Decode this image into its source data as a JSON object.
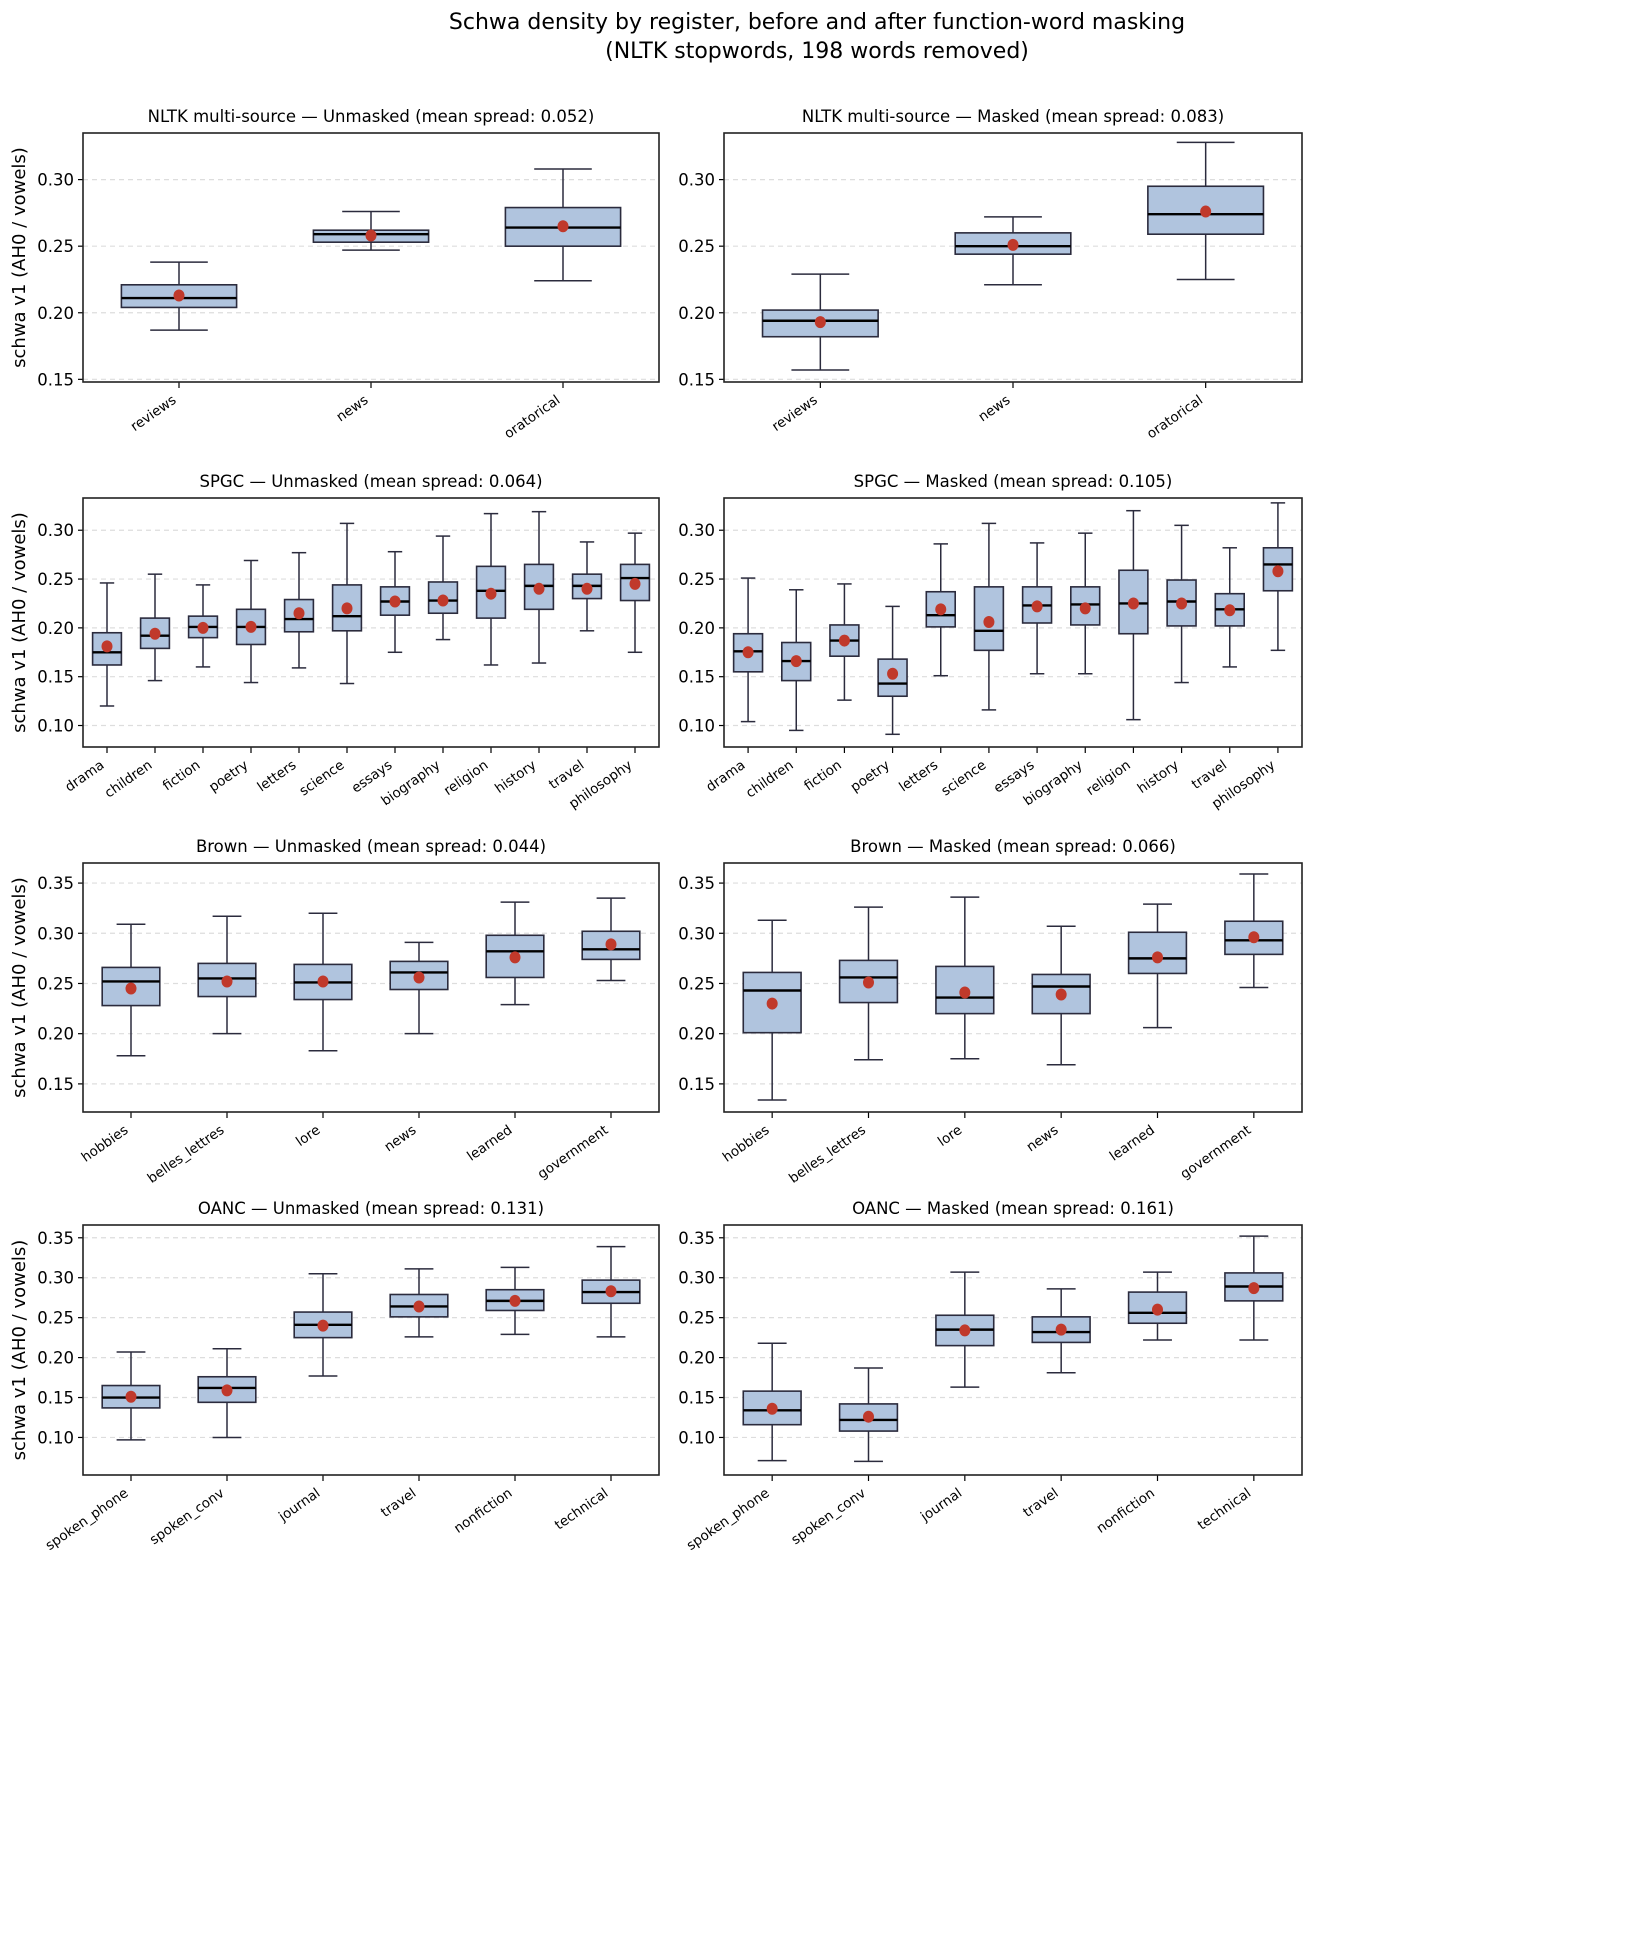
{
  "figure": {
    "title_line1": "Schwa density by register, before and after function-word masking",
    "title_line2": "(NLTK stopwords, 198 words removed)",
    "colors": {
      "box_fill": "#b0c4de",
      "box_edge": "#2b2b3d",
      "median": "#000000",
      "mean_marker": "#c0392b",
      "grid": "#dddddd"
    }
  },
  "chart_data": [
    {
      "type": "box",
      "title": "NLTK multi-source — Unmasked  (mean spread: 0.052)",
      "ylabel": "schwa v1 (AH0 / vowels)",
      "xlabel": "",
      "ylim": [
        0.148,
        0.335
      ],
      "yticks": [
        "0.15",
        "0.20",
        "0.25",
        "0.30"
      ],
      "grid": "y-dashed",
      "categories": [
        "reviews",
        "news",
        "oratorical"
      ],
      "boxes": [
        {
          "whislo": 0.187,
          "q1": 0.204,
          "median": 0.211,
          "q3": 0.221,
          "whishi": 0.238,
          "mean": 0.213
        },
        {
          "whislo": 0.247,
          "q1": 0.253,
          "median": 0.259,
          "q3": 0.262,
          "whishi": 0.276,
          "mean": 0.258
        },
        {
          "whislo": 0.224,
          "q1": 0.25,
          "median": 0.264,
          "q3": 0.279,
          "whishi": 0.308,
          "mean": 0.265
        }
      ]
    },
    {
      "type": "box",
      "title": "NLTK multi-source — Masked  (mean spread: 0.083)",
      "ylabel": "",
      "xlabel": "",
      "ylim": [
        0.148,
        0.335
      ],
      "yticks": [
        "0.15",
        "0.20",
        "0.25",
        "0.30"
      ],
      "grid": "y-dashed",
      "categories": [
        "reviews",
        "news",
        "oratorical"
      ],
      "boxes": [
        {
          "whislo": 0.157,
          "q1": 0.182,
          "median": 0.194,
          "q3": 0.202,
          "whishi": 0.229,
          "mean": 0.193
        },
        {
          "whislo": 0.221,
          "q1": 0.244,
          "median": 0.25,
          "q3": 0.26,
          "whishi": 0.272,
          "mean": 0.251
        },
        {
          "whislo": 0.225,
          "q1": 0.259,
          "median": 0.274,
          "q3": 0.295,
          "whishi": 0.328,
          "mean": 0.276
        }
      ]
    },
    {
      "type": "box",
      "title": "SPGC — Unmasked  (mean spread: 0.064)",
      "ylabel": "schwa v1 (AH0 / vowels)",
      "xlabel": "",
      "ylim": [
        0.078,
        0.333
      ],
      "yticks": [
        "0.10",
        "0.15",
        "0.20",
        "0.25",
        "0.30"
      ],
      "grid": "y-dashed",
      "categories": [
        "drama",
        "children",
        "fiction",
        "poetry",
        "letters",
        "science",
        "essays",
        "biography",
        "religion",
        "history",
        "travel",
        "philosophy"
      ],
      "boxes": [
        {
          "whislo": 0.12,
          "q1": 0.162,
          "median": 0.175,
          "q3": 0.195,
          "whishi": 0.246,
          "mean": 0.181
        },
        {
          "whislo": 0.146,
          "q1": 0.179,
          "median": 0.192,
          "q3": 0.21,
          "whishi": 0.255,
          "mean": 0.194
        },
        {
          "whislo": 0.16,
          "q1": 0.19,
          "median": 0.201,
          "q3": 0.212,
          "whishi": 0.244,
          "mean": 0.2
        },
        {
          "whislo": 0.144,
          "q1": 0.183,
          "median": 0.201,
          "q3": 0.219,
          "whishi": 0.269,
          "mean": 0.201
        },
        {
          "whislo": 0.159,
          "q1": 0.196,
          "median": 0.209,
          "q3": 0.229,
          "whishi": 0.277,
          "mean": 0.215
        },
        {
          "whislo": 0.143,
          "q1": 0.197,
          "median": 0.212,
          "q3": 0.244,
          "whishi": 0.307,
          "mean": 0.22
        },
        {
          "whislo": 0.175,
          "q1": 0.213,
          "median": 0.227,
          "q3": 0.242,
          "whishi": 0.278,
          "mean": 0.227
        },
        {
          "whislo": 0.188,
          "q1": 0.215,
          "median": 0.228,
          "q3": 0.247,
          "whishi": 0.294,
          "mean": 0.228
        },
        {
          "whislo": 0.162,
          "q1": 0.21,
          "median": 0.238,
          "q3": 0.263,
          "whishi": 0.317,
          "mean": 0.235
        },
        {
          "whislo": 0.164,
          "q1": 0.219,
          "median": 0.243,
          "q3": 0.265,
          "whishi": 0.319,
          "mean": 0.24
        },
        {
          "whislo": 0.197,
          "q1": 0.23,
          "median": 0.243,
          "q3": 0.255,
          "whishi": 0.288,
          "mean": 0.24
        },
        {
          "whislo": 0.175,
          "q1": 0.228,
          "median": 0.251,
          "q3": 0.265,
          "whishi": 0.297,
          "mean": 0.245
        }
      ]
    },
    {
      "type": "box",
      "title": "SPGC — Masked  (mean spread: 0.105)",
      "ylabel": "",
      "xlabel": "",
      "ylim": [
        0.078,
        0.333
      ],
      "yticks": [
        "0.10",
        "0.15",
        "0.20",
        "0.25",
        "0.30"
      ],
      "grid": "y-dashed",
      "categories": [
        "drama",
        "children",
        "fiction",
        "poetry",
        "letters",
        "science",
        "essays",
        "biography",
        "religion",
        "history",
        "travel",
        "philosophy"
      ],
      "boxes": [
        {
          "whislo": 0.104,
          "q1": 0.155,
          "median": 0.176,
          "q3": 0.194,
          "whishi": 0.251,
          "mean": 0.175
        },
        {
          "whislo": 0.095,
          "q1": 0.146,
          "median": 0.166,
          "q3": 0.185,
          "whishi": 0.239,
          "mean": 0.166
        },
        {
          "whislo": 0.126,
          "q1": 0.171,
          "median": 0.187,
          "q3": 0.203,
          "whishi": 0.245,
          "mean": 0.187
        },
        {
          "whislo": 0.091,
          "q1": 0.13,
          "median": 0.143,
          "q3": 0.168,
          "whishi": 0.222,
          "mean": 0.153
        },
        {
          "whislo": 0.151,
          "q1": 0.201,
          "median": 0.213,
          "q3": 0.237,
          "whishi": 0.286,
          "mean": 0.219
        },
        {
          "whislo": 0.116,
          "q1": 0.177,
          "median": 0.197,
          "q3": 0.242,
          "whishi": 0.307,
          "mean": 0.206
        },
        {
          "whislo": 0.153,
          "q1": 0.205,
          "median": 0.223,
          "q3": 0.242,
          "whishi": 0.287,
          "mean": 0.222
        },
        {
          "whislo": 0.153,
          "q1": 0.203,
          "median": 0.224,
          "q3": 0.242,
          "whishi": 0.297,
          "mean": 0.22
        },
        {
          "whislo": 0.106,
          "q1": 0.194,
          "median": 0.225,
          "q3": 0.259,
          "whishi": 0.32,
          "mean": 0.225
        },
        {
          "whislo": 0.144,
          "q1": 0.202,
          "median": 0.227,
          "q3": 0.249,
          "whishi": 0.305,
          "mean": 0.225
        },
        {
          "whislo": 0.16,
          "q1": 0.202,
          "median": 0.219,
          "q3": 0.235,
          "whishi": 0.282,
          "mean": 0.218
        },
        {
          "whislo": 0.177,
          "q1": 0.238,
          "median": 0.265,
          "q3": 0.282,
          "whishi": 0.328,
          "mean": 0.258
        }
      ]
    },
    {
      "type": "box",
      "title": "Brown — Unmasked  (mean spread: 0.044)",
      "ylabel": "schwa v1 (AH0 / vowels)",
      "xlabel": "",
      "ylim": [
        0.122,
        0.37
      ],
      "yticks": [
        "0.15",
        "0.20",
        "0.25",
        "0.30",
        "0.35"
      ],
      "grid": "y-dashed",
      "categories": [
        "hobbies",
        "belles_lettres",
        "lore",
        "news",
        "learned",
        "government"
      ],
      "boxes": [
        {
          "whislo": 0.178,
          "q1": 0.228,
          "median": 0.252,
          "q3": 0.266,
          "whishi": 0.309,
          "mean": 0.245
        },
        {
          "whislo": 0.2,
          "q1": 0.237,
          "median": 0.255,
          "q3": 0.27,
          "whishi": 0.317,
          "mean": 0.252
        },
        {
          "whislo": 0.183,
          "q1": 0.234,
          "median": 0.251,
          "q3": 0.269,
          "whishi": 0.32,
          "mean": 0.252
        },
        {
          "whislo": 0.2,
          "q1": 0.244,
          "median": 0.261,
          "q3": 0.272,
          "whishi": 0.291,
          "mean": 0.256
        },
        {
          "whislo": 0.229,
          "q1": 0.256,
          "median": 0.282,
          "q3": 0.298,
          "whishi": 0.331,
          "mean": 0.276
        },
        {
          "whislo": 0.253,
          "q1": 0.274,
          "median": 0.284,
          "q3": 0.302,
          "whishi": 0.335,
          "mean": 0.289
        }
      ]
    },
    {
      "type": "box",
      "title": "Brown — Masked  (mean spread: 0.066)",
      "ylabel": "",
      "xlabel": "",
      "ylim": [
        0.122,
        0.37
      ],
      "yticks": [
        "0.15",
        "0.20",
        "0.25",
        "0.30",
        "0.35"
      ],
      "grid": "y-dashed",
      "categories": [
        "hobbies",
        "belles_lettres",
        "lore",
        "news",
        "learned",
        "government"
      ],
      "boxes": [
        {
          "whislo": 0.134,
          "q1": 0.201,
          "median": 0.243,
          "q3": 0.261,
          "whishi": 0.313,
          "mean": 0.23
        },
        {
          "whislo": 0.174,
          "q1": 0.231,
          "median": 0.256,
          "q3": 0.273,
          "whishi": 0.326,
          "mean": 0.251
        },
        {
          "whislo": 0.175,
          "q1": 0.22,
          "median": 0.236,
          "q3": 0.267,
          "whishi": 0.336,
          "mean": 0.241
        },
        {
          "whislo": 0.169,
          "q1": 0.22,
          "median": 0.247,
          "q3": 0.259,
          "whishi": 0.307,
          "mean": 0.239
        },
        {
          "whislo": 0.206,
          "q1": 0.26,
          "median": 0.275,
          "q3": 0.301,
          "whishi": 0.329,
          "mean": 0.276
        },
        {
          "whislo": 0.246,
          "q1": 0.279,
          "median": 0.293,
          "q3": 0.312,
          "whishi": 0.359,
          "mean": 0.296
        }
      ]
    },
    {
      "type": "box",
      "title": "OANC — Unmasked  (mean spread: 0.131)",
      "ylabel": "schwa v1 (AH0 / vowels)",
      "xlabel": "",
      "ylim": [
        0.053,
        0.366
      ],
      "yticks": [
        "0.10",
        "0.15",
        "0.20",
        "0.25",
        "0.30",
        "0.35"
      ],
      "grid": "y-dashed",
      "categories": [
        "spoken_phone",
        "spoken_conv",
        "journal",
        "travel",
        "nonfiction",
        "technical"
      ],
      "boxes": [
        {
          "whislo": 0.097,
          "q1": 0.137,
          "median": 0.15,
          "q3": 0.165,
          "whishi": 0.207,
          "mean": 0.151
        },
        {
          "whislo": 0.1,
          "q1": 0.144,
          "median": 0.162,
          "q3": 0.176,
          "whishi": 0.211,
          "mean": 0.159
        },
        {
          "whislo": 0.177,
          "q1": 0.225,
          "median": 0.241,
          "q3": 0.257,
          "whishi": 0.305,
          "mean": 0.24
        },
        {
          "whislo": 0.226,
          "q1": 0.251,
          "median": 0.264,
          "q3": 0.279,
          "whishi": 0.311,
          "mean": 0.264
        },
        {
          "whislo": 0.229,
          "q1": 0.259,
          "median": 0.271,
          "q3": 0.285,
          "whishi": 0.313,
          "mean": 0.271
        },
        {
          "whislo": 0.226,
          "q1": 0.268,
          "median": 0.282,
          "q3": 0.297,
          "whishi": 0.339,
          "mean": 0.283
        }
      ]
    },
    {
      "type": "box",
      "title": "OANC — Masked  (mean spread: 0.161)",
      "ylabel": "",
      "xlabel": "",
      "ylim": [
        0.053,
        0.366
      ],
      "yticks": [
        "0.10",
        "0.15",
        "0.20",
        "0.25",
        "0.30",
        "0.35"
      ],
      "grid": "y-dashed",
      "categories": [
        "spoken_phone",
        "spoken_conv",
        "journal",
        "travel",
        "nonfiction",
        "technical"
      ],
      "boxes": [
        {
          "whislo": 0.071,
          "q1": 0.116,
          "median": 0.134,
          "q3": 0.158,
          "whishi": 0.218,
          "mean": 0.136
        },
        {
          "whislo": 0.07,
          "q1": 0.108,
          "median": 0.122,
          "q3": 0.142,
          "whishi": 0.187,
          "mean": 0.126
        },
        {
          "whislo": 0.163,
          "q1": 0.215,
          "median": 0.235,
          "q3": 0.253,
          "whishi": 0.307,
          "mean": 0.234
        },
        {
          "whislo": 0.181,
          "q1": 0.219,
          "median": 0.232,
          "q3": 0.251,
          "whishi": 0.286,
          "mean": 0.235
        },
        {
          "whislo": 0.222,
          "q1": 0.243,
          "median": 0.256,
          "q3": 0.282,
          "whishi": 0.307,
          "mean": 0.26
        },
        {
          "whislo": 0.222,
          "q1": 0.271,
          "median": 0.289,
          "q3": 0.306,
          "whishi": 0.352,
          "mean": 0.287
        }
      ]
    }
  ]
}
